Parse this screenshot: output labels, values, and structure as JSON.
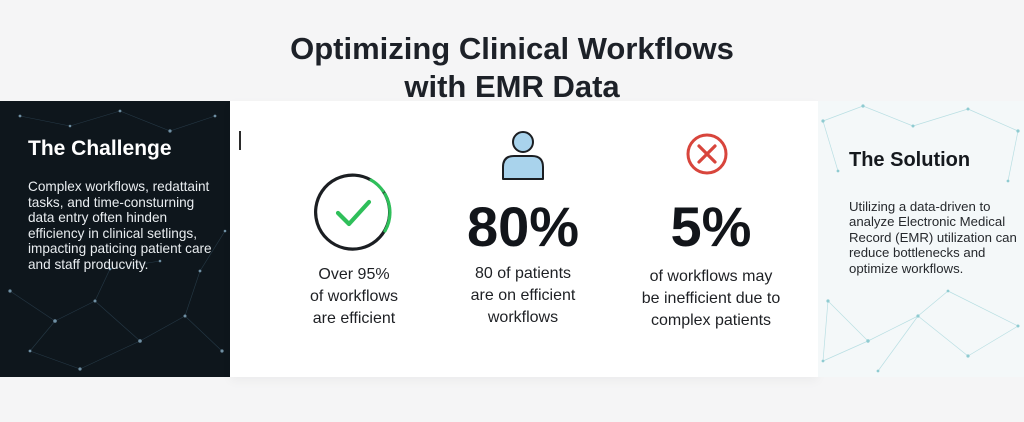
{
  "header": {
    "title_line1": "Optimizing Clinical Workflows",
    "title_line2": "with EMR Data"
  },
  "challenge": {
    "heading": "The Challenge",
    "body": "Complex workflows, redattaint tasks, and time-consturning data entry often hinden efficiency in clinical setlings, impacting paticing patient care and staff producvity."
  },
  "stats": [
    {
      "icon": "check-circle-icon",
      "value": "",
      "caption_lines": [
        "Over 95%",
        "of workflows",
        "are efficient"
      ]
    },
    {
      "icon": "user-icon",
      "value": "80%",
      "caption_lines": [
        "80 of patients",
        "are on efficient",
        "workflows"
      ]
    },
    {
      "icon": "x-circle-icon",
      "value": "5%",
      "caption_lines": [
        "of workflows may",
        "be inefficient due to",
        "complex patients"
      ]
    }
  ],
  "solution": {
    "heading": "The Solution",
    "body": "Utilizing a data-driven to analyze Electronic Medical Record (EMR) utilization can reduce bottlenecks and optimize workflows."
  },
  "colors": {
    "challenge_bg": "#0e161c",
    "check_green": "#2fbf5a",
    "user_blue": "#a9d3ec",
    "x_red": "#d8453c"
  }
}
